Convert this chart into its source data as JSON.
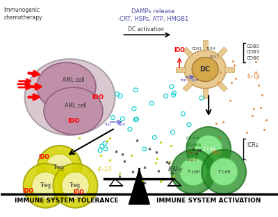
{
  "bg_color": "#ffffff",
  "title_text": "Immunogenic\nchemotherapy",
  "damps_text": "DAMPs release\n-CRT, HSPs, ATP, HMGB1",
  "dc_activation_text": "DC activation",
  "cd_right_text": "CD80\nCD83\nCD86",
  "il1b_text": "IL-1β",
  "icrs_text": "ICRs",
  "il10_text": "IL-10",
  "ifng_text": "IFN-γ",
  "immune_tol_text": "IMMUNE SYSTEM TOLERANCE",
  "immune_act_text": "IMMUNE SYSTEM ACTIVATION",
  "aml_color": "#c5a0b0",
  "aml_outer_color": "#d9c0cc",
  "dc_color": "#e8c990",
  "dc_inner_color": "#d4a84b",
  "treg_outer_color": "#d4d400",
  "treg_inner_color": "#f0f0a0",
  "tcell_outer_color": "#228B22",
  "tcell_inner_color": "#90EE90",
  "arrow_color": "#000000",
  "ido_color": "#ff0000",
  "trp_kyn_color": "#4444cc",
  "scatter_cyan_color": "#00cccc",
  "scatter_orange_color": "#e07820",
  "scatter_yellow_color": "#c8c800",
  "scatter_dark_color": "#333333",
  "ctla4_color": "#006600",
  "cd200r_color": "#006600",
  "tim3_color": "#8B4513",
  "lag3_color": "#8B4513",
  "pd1_color": "#ff6600"
}
